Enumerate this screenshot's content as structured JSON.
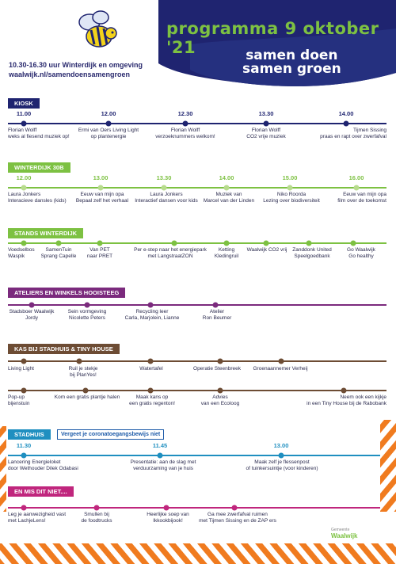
{
  "header": {
    "title": "programma 9 oktober '21",
    "slogan_line1": "samen doen",
    "slogan_line2": "samen groen",
    "info_line1": "10.30-16.30 uur Winterdijk en omgeving",
    "info_line2": "waalwijk.nl/samendoensamengroen"
  },
  "colors": {
    "navy": "#1f2470",
    "green": "#7dc142",
    "purple": "#7b2a7d",
    "brown": "#6d4c34",
    "blue": "#1f8fc0",
    "magenta": "#c0267d",
    "orange": "#f07b1f"
  },
  "sections": {
    "kiosk": {
      "title": "KIOSK",
      "times": [
        "11.00",
        "12.00",
        "12.30",
        "13.30",
        "14.00"
      ],
      "items": [
        {
          "l1": "Florian Wolff",
          "l2": "weks al fiesend muziek op!"
        },
        {
          "l1": "Ermi van Oers Living Light",
          "l2": "op plantenergie"
        },
        {
          "l1": "Florian Wolff",
          "l2": "verzoeknummers welkom!"
        },
        {
          "l1": "Florian Wolff",
          "l2": "CO2 vrije muziek"
        },
        {
          "l1": "Tijmen Sissing",
          "l2": "praas en rapt over zwerfafval"
        }
      ]
    },
    "winterdijk": {
      "title": "WINTERDIJK 30B",
      "times": [
        "12.00",
        "13.00",
        "13.30",
        "14.00",
        "15.00",
        "16.00"
      ],
      "items": [
        {
          "l1": "Laura Jonkers",
          "l2": "Interacieve dansles (kids)"
        },
        {
          "l1": "Eeuw van mijn opa",
          "l2": "Bepaal zelf het verhaal"
        },
        {
          "l1": "Laura Jonkers",
          "l2": "Interactief dansen voor kids"
        },
        {
          "l1": "Muziek van",
          "l2": "Marcel van der Linden"
        },
        {
          "l1": "Niko Roorda",
          "l2": "Lezing over biodiversiteit"
        },
        {
          "l1": "Eeuw van mijn opa",
          "l2": "film over de toekomst"
        }
      ]
    },
    "stands": {
      "title": "STANDS WINTERDIJK",
      "items": [
        {
          "l1": "Voedselbos",
          "l2": "Waspik"
        },
        {
          "l1": "SamenTuin",
          "l2": "Sprang Capelle"
        },
        {
          "l1": "Van PET",
          "l2": "naar PRET"
        },
        {
          "l1": "Per e-step naar het energiepark",
          "l2": "met LangstraatZON"
        },
        {
          "l1": "Ketting",
          "l2": "Kledingruil"
        },
        {
          "l1": "Waalwijk CO2 vrij",
          "l2": ""
        },
        {
          "l1": "Zanddonk United",
          "l2": "Speelgoedbank"
        },
        {
          "l1": "Go Waalwijk",
          "l2": "Go healthy"
        }
      ]
    },
    "ateliers": {
      "title": "ATELIERS EN WINKELS HOOISTEEG",
      "items": [
        {
          "l1": "Stadsboer Waalwijk",
          "l2": "Jordy"
        },
        {
          "l1": "Sein vormgeving",
          "l2": "Nicolette Peters"
        },
        {
          "l1": "Recycling leer",
          "l2": "Carla, Marjolein, Lianne"
        },
        {
          "l1": "Atelier",
          "l2": "Ron Beumer"
        }
      ]
    },
    "kas": {
      "title": "KAS BIJ STADHUIS & TINY HOUSE",
      "top_items": [
        {
          "l1": "Living Light",
          "l2": ""
        },
        {
          "l1": "Ruil je stekje",
          "l2": "bij PlanYes!"
        },
        {
          "l1": "Watertafel",
          "l2": ""
        },
        {
          "l1": "Operatie Steenbreek",
          "l2": ""
        },
        {
          "l1": "Groenaannemer Verheij",
          "l2": ""
        }
      ],
      "bottom_items": [
        {
          "l1": "Pop-up",
          "l2": "bijenstuin"
        },
        {
          "l1": "Kom een gratis plantje halen",
          "l2": ""
        },
        {
          "l1": "Maak kans op",
          "l2": "een gratis regenton!"
        },
        {
          "l1": "Advies",
          "l2": "van een Ecoloog"
        },
        {
          "l1": "Neem ook een kijkje",
          "l2": "in een Tiny House bij de Rabobank"
        }
      ]
    },
    "stadhuis": {
      "title": "STADHUIS",
      "note": "Vergeet je coronatoegangsbewijs niet",
      "times": [
        "11.30",
        "11.45",
        "13.00"
      ],
      "items": [
        {
          "l1": "Lancering Energieloket",
          "l2": "door Wethouder Dilek Odabasi"
        },
        {
          "l1": "Presentatie: aan de slag met",
          "l2": "verduurzaming van je huis"
        },
        {
          "l1": "Maak zelf je flessenpost",
          "l2": "of tuinkersuintje (voor kinderen)"
        }
      ]
    },
    "mis": {
      "title": "EN MIS DIT NIET....",
      "items": [
        {
          "l1": "Leg je aanwezigheid vast",
          "l2": "met LachjeLens!"
        },
        {
          "l1": "Smullen bij",
          "l2": "de foodtrucks"
        },
        {
          "l1": "Heerlijke soep van",
          "l2": "Ikkookbijook!"
        },
        {
          "l1": "Ga mee zwerfafval ruimen",
          "l2": "met Tijmen Sissing en de ZAP ers"
        }
      ]
    }
  },
  "footer": {
    "logo_small": "Gemeente",
    "logo": "Waalwijk"
  }
}
